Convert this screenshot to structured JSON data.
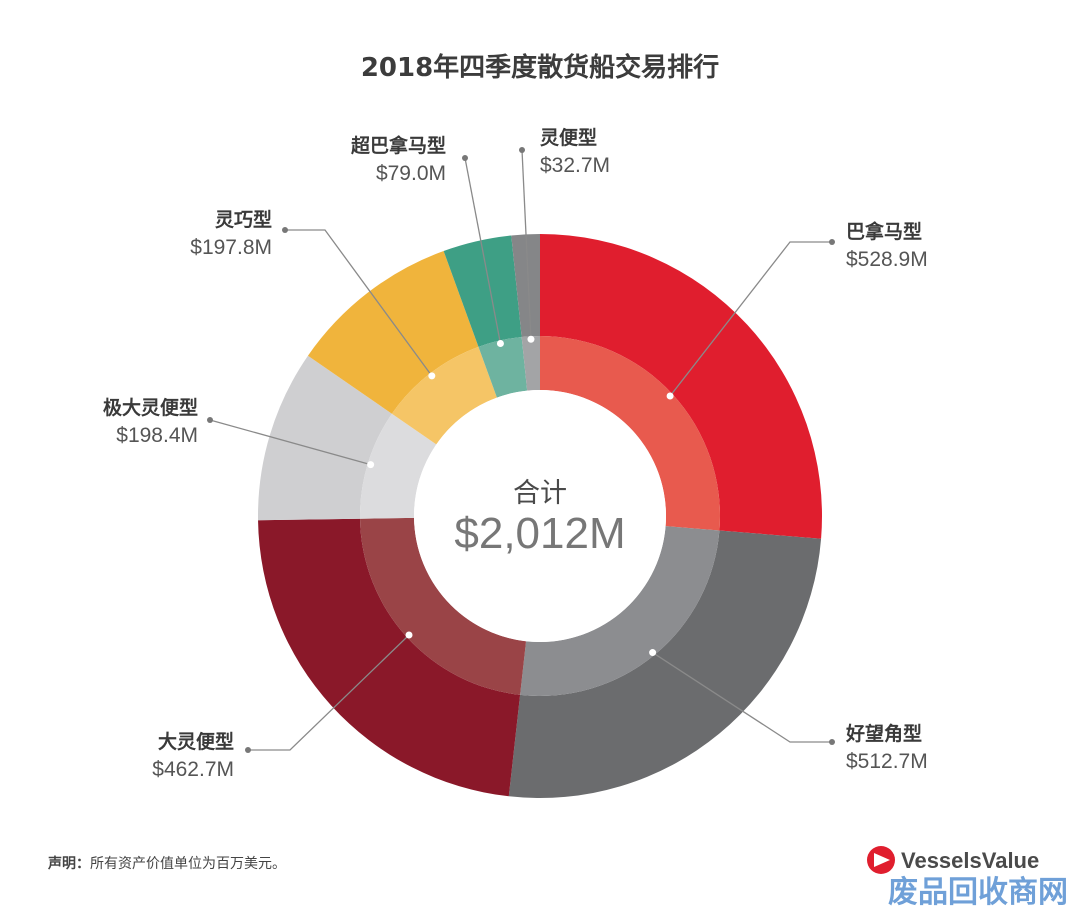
{
  "chart_data": {
    "type": "pie",
    "title": "2018年四季度散货船交易排行",
    "center_label": "合计",
    "center_total": "$2,012M",
    "slices": [
      {
        "name": "巴拿马型",
        "value": 528.9,
        "label": "$528.9M",
        "color": "#e01e2e",
        "inner_color": "#e85a4e"
      },
      {
        "name": "好望角型",
        "value": 512.7,
        "label": "$512.7M",
        "color": "#6b6c6e",
        "inner_color": "#8c8d90"
      },
      {
        "name": "大灵便型",
        "value": 462.7,
        "label": "$462.7M",
        "color": "#8a1829",
        "inner_color": "#9a4447"
      },
      {
        "name": "极大灵便型",
        "value": 198.4,
        "label": "$198.4M",
        "color": "#cfcfd1",
        "inner_color": "#dcdcde"
      },
      {
        "name": "灵巧型",
        "value": 197.8,
        "label": "$197.8M",
        "color": "#f0b43c",
        "inner_color": "#f5c566"
      },
      {
        "name": "超巴拿马型",
        "value": 79.0,
        "label": "$79.0M",
        "color": "#3e9f85",
        "inner_color": "#6eb3a0"
      },
      {
        "name": "灵便型",
        "value": 32.7,
        "label": "$32.7M",
        "color": "#858688",
        "inner_color": "#a3a4a6"
      }
    ]
  },
  "footnote": {
    "label": "声明：",
    "text": "所有资产价值单位为百万美元。"
  },
  "brand": {
    "name": "VesselsValue",
    "logo_color": "#e01e2e"
  },
  "watermark": "废品回收商网"
}
